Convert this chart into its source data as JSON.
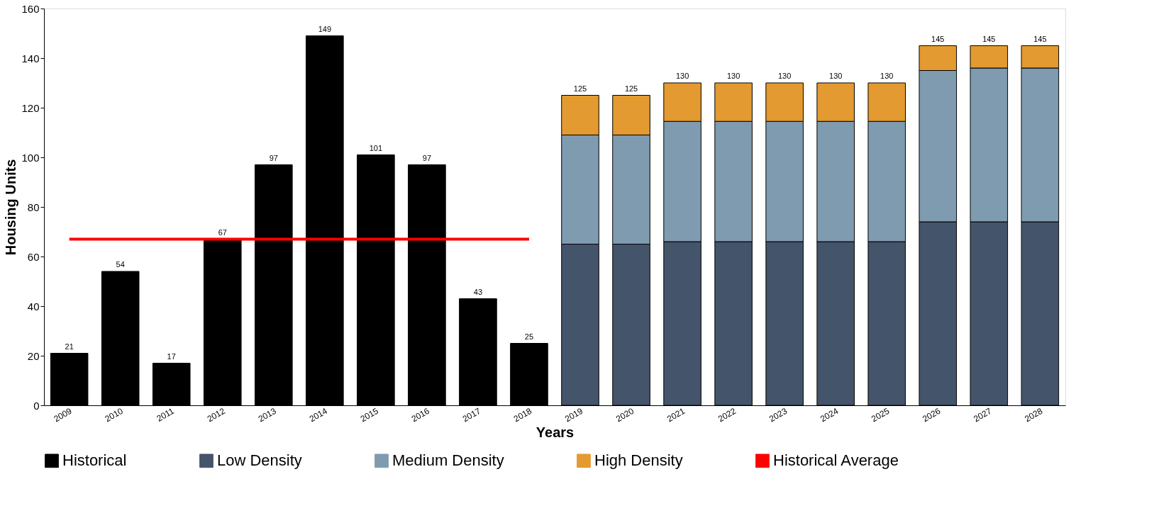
{
  "chart_data": {
    "type": "bar",
    "stacked": true,
    "xlabel": "Years",
    "ylabel": "Housing Units",
    "categories": [
      "2009",
      "2010",
      "2011",
      "2012",
      "2013",
      "2014",
      "2015",
      "2016",
      "2017",
      "2018",
      "2019",
      "2020",
      "2021",
      "2022",
      "2023",
      "2024",
      "2025",
      "2026",
      "2027",
      "2028"
    ],
    "series": [
      {
        "name": "Historical",
        "color": "#000000",
        "values": [
          21,
          54,
          17,
          67,
          97,
          149,
          101,
          97,
          43,
          25,
          null,
          null,
          null,
          null,
          null,
          null,
          null,
          null,
          null,
          null
        ],
        "value_labels": [
          "21",
          "54",
          "17",
          "67",
          "97",
          "149",
          "101",
          "97",
          "43",
          "25",
          null,
          null,
          null,
          null,
          null,
          null,
          null,
          null,
          null,
          null
        ]
      },
      {
        "name": "Low Density",
        "color": "#44546a",
        "values": [
          null,
          null,
          null,
          null,
          null,
          null,
          null,
          null,
          null,
          null,
          65,
          65,
          66,
          66,
          66,
          66,
          66,
          74,
          74,
          74
        ]
      },
      {
        "name": "Medium Density",
        "color": "#7f9bb0",
        "values": [
          null,
          null,
          null,
          null,
          null,
          null,
          null,
          null,
          null,
          null,
          44,
          44,
          48.5,
          48.5,
          48.5,
          48.5,
          48.5,
          61,
          62,
          62
        ]
      },
      {
        "name": "High Density",
        "color": "#e39a30",
        "values": [
          null,
          null,
          null,
          null,
          null,
          null,
          null,
          null,
          null,
          null,
          16,
          16,
          15.5,
          15.5,
          15.5,
          15.5,
          15.5,
          10,
          9,
          9
        ]
      },
      {
        "name": "Historical Average",
        "color": "#ff0000",
        "type": "line",
        "values": [
          67,
          67,
          67,
          67,
          67,
          67,
          67,
          67,
          67,
          67,
          null,
          null,
          null,
          null,
          null,
          null,
          null,
          null,
          null,
          null
        ]
      }
    ],
    "totals": [
      null,
      null,
      null,
      null,
      null,
      null,
      null,
      null,
      null,
      null,
      "125",
      "125",
      "130",
      "130",
      "130",
      "130",
      "130",
      "145",
      "145",
      "145"
    ],
    "ylim": [
      0,
      160
    ],
    "yticks": [
      0,
      20,
      40,
      60,
      80,
      100,
      120,
      140,
      160
    ],
    "grid": false,
    "legend": "bottom",
    "marker": "none"
  }
}
